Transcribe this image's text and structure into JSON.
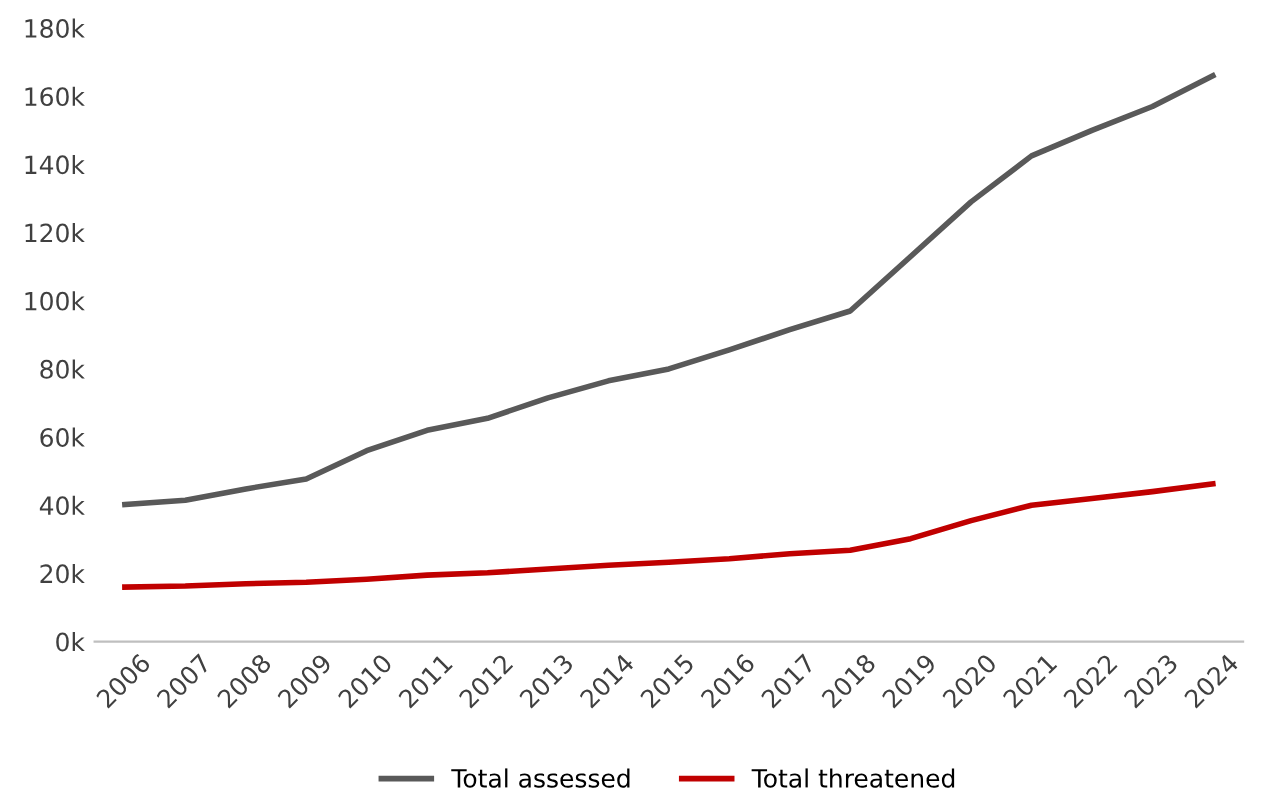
{
  "chart_data": {
    "type": "line",
    "categories": [
      "2006",
      "2007",
      "2008",
      "2009",
      "2010",
      "2011",
      "2012",
      "2013",
      "2014",
      "2015",
      "2016",
      "2017",
      "2018",
      "2019",
      "2020",
      "2021",
      "2022",
      "2023",
      "2024"
    ],
    "series": [
      {
        "name": "Total assessed",
        "color": "#595959",
        "values": [
          40200,
          41500,
          44800,
          47700,
          56000,
          62000,
          65500,
          71500,
          76500,
          80000,
          85600,
          91500,
          97000,
          113000,
          129000,
          142500,
          150000,
          157000,
          166000
        ]
      },
      {
        "name": "Total threatened",
        "color": "#c00000",
        "values": [
          16000,
          16300,
          17000,
          17400,
          18300,
          19500,
          20200,
          21300,
          22400,
          23300,
          24300,
          25800,
          26800,
          30200,
          35500,
          40000,
          42000,
          44000,
          46300
        ]
      }
    ],
    "ylim": [
      0,
      180000
    ],
    "yticks": [
      {
        "value": 0,
        "label": "0k"
      },
      {
        "value": 20000,
        "label": "20k"
      },
      {
        "value": 40000,
        "label": "40k"
      },
      {
        "value": 60000,
        "label": "60k"
      },
      {
        "value": 80000,
        "label": "80k"
      },
      {
        "value": 100000,
        "label": "100k"
      },
      {
        "value": 120000,
        "label": "120k"
      },
      {
        "value": 140000,
        "label": "140k"
      },
      {
        "value": 160000,
        "label": "160k"
      },
      {
        "value": 180000,
        "label": "180k"
      }
    ],
    "grid": false,
    "legend": "bottom",
    "marker": "none",
    "line_style": "solid"
  }
}
